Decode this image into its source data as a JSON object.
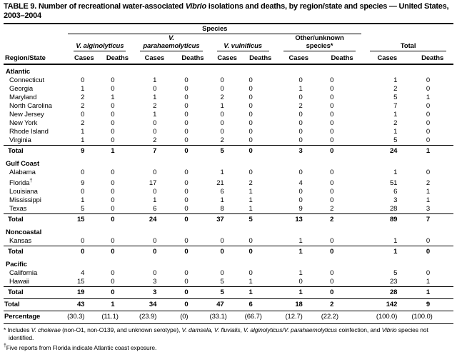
{
  "title": {
    "segments": [
      {
        "t": "TABLE 9. Number of recreational water-associated "
      },
      {
        "t": "Vibrio",
        "i": true
      },
      {
        "t": " isolations and deaths, by region/state and species — United States, 2003–2004"
      }
    ]
  },
  "header": {
    "species_label": "Species",
    "region_label": "Region/State",
    "groups": [
      {
        "label": "V. alginolyticus",
        "italic": true
      },
      {
        "label": "V. parahaemolyticus",
        "italic": true
      },
      {
        "label": "V. vulnificus",
        "italic": true
      },
      {
        "label": "Other/unknown species*",
        "italic": false
      },
      {
        "label": "Total",
        "italic": false
      }
    ],
    "sub_cases": "Cases",
    "sub_deaths": "Deaths"
  },
  "sections": [
    {
      "name": "Atlantic",
      "rows": [
        {
          "state": "Connecticut",
          "values": [
            0,
            0,
            1,
            0,
            0,
            0,
            0,
            0,
            1,
            0
          ]
        },
        {
          "state": "Georgia",
          "values": [
            1,
            0,
            0,
            0,
            0,
            0,
            1,
            0,
            2,
            0
          ]
        },
        {
          "state": "Maryland",
          "values": [
            2,
            1,
            1,
            0,
            2,
            0,
            0,
            0,
            5,
            1
          ]
        },
        {
          "state": "North Carolina",
          "values": [
            2,
            0,
            2,
            0,
            1,
            0,
            2,
            0,
            7,
            0
          ]
        },
        {
          "state": "New Jersey",
          "values": [
            0,
            0,
            1,
            0,
            0,
            0,
            0,
            0,
            1,
            0
          ]
        },
        {
          "state": "New York",
          "values": [
            2,
            0,
            0,
            0,
            0,
            0,
            0,
            0,
            2,
            0
          ]
        },
        {
          "state": "Rhode Island",
          "values": [
            1,
            0,
            0,
            0,
            0,
            0,
            0,
            0,
            1,
            0
          ]
        },
        {
          "state": "Virginia",
          "values": [
            1,
            0,
            2,
            0,
            2,
            0,
            0,
            0,
            5,
            0
          ]
        }
      ],
      "total_label": "Total",
      "total": [
        9,
        1,
        7,
        0,
        5,
        0,
        3,
        0,
        24,
        1
      ]
    },
    {
      "name": "Gulf Coast",
      "rows": [
        {
          "state": "Alabama",
          "values": [
            0,
            0,
            0,
            0,
            1,
            0,
            0,
            0,
            1,
            0
          ]
        },
        {
          "state": "Florida",
          "sup": "†",
          "values": [
            9,
            0,
            17,
            0,
            21,
            2,
            4,
            0,
            51,
            2
          ]
        },
        {
          "state": "Louisiana",
          "values": [
            0,
            0,
            0,
            0,
            6,
            1,
            0,
            0,
            6,
            1
          ]
        },
        {
          "state": "Mississippi",
          "values": [
            1,
            0,
            1,
            0,
            1,
            1,
            0,
            0,
            3,
            1
          ]
        },
        {
          "state": "Texas",
          "values": [
            5,
            0,
            6,
            0,
            8,
            1,
            9,
            2,
            28,
            3
          ]
        }
      ],
      "total_label": "Total",
      "total": [
        15,
        0,
        24,
        0,
        37,
        5,
        13,
        2,
        89,
        7
      ]
    },
    {
      "name": "Noncoastal",
      "rows": [
        {
          "state": "Kansas",
          "values": [
            0,
            0,
            0,
            0,
            0,
            0,
            1,
            0,
            1,
            0
          ]
        }
      ],
      "total_label": "Total",
      "total": [
        0,
        0,
        0,
        0,
        0,
        0,
        1,
        0,
        1,
        0
      ]
    },
    {
      "name": "Pacific",
      "rows": [
        {
          "state": "California",
          "values": [
            4,
            0,
            0,
            0,
            0,
            0,
            1,
            0,
            5,
            0
          ]
        },
        {
          "state": "Hawaii",
          "values": [
            15,
            0,
            3,
            0,
            5,
            1,
            0,
            0,
            23,
            1
          ]
        }
      ],
      "total_label": "Total",
      "total": [
        19,
        0,
        3,
        0,
        5,
        1,
        1,
        0,
        28,
        1
      ]
    }
  ],
  "grand_total_label": "Total",
  "grand_total": [
    43,
    1,
    34,
    0,
    47,
    6,
    18,
    2,
    142,
    9
  ],
  "percentage_label": "Percentage",
  "percentage": [
    "(30.3)",
    "(11.1)",
    "(23.9)",
    "(0)",
    "(33.1)",
    "(66.7)",
    "(12.7)",
    "(22.2)",
    "(100.0)",
    "(100.0)"
  ],
  "footnotes": [
    {
      "marker": "*",
      "sup": false,
      "segments": [
        {
          "t": " Includes "
        },
        {
          "t": "V. cholerae",
          "i": true
        },
        {
          "t": " (non-O1, non-O139, and unknown serotype), "
        },
        {
          "t": "V. damsela",
          "i": true
        },
        {
          "t": ", "
        },
        {
          "t": "V. fluvialis",
          "i": true
        },
        {
          "t": ", "
        },
        {
          "t": "V. alginolyticus/V. parahaemolyticus",
          "i": true
        },
        {
          "t": " coinfection, and "
        },
        {
          "t": "Vibrio",
          "i": true
        },
        {
          "t": " species not identified."
        }
      ]
    },
    {
      "marker": "†",
      "sup": true,
      "segments": [
        {
          "t": "Five reports from Florida indicate Atlantic coast exposure."
        }
      ]
    }
  ]
}
